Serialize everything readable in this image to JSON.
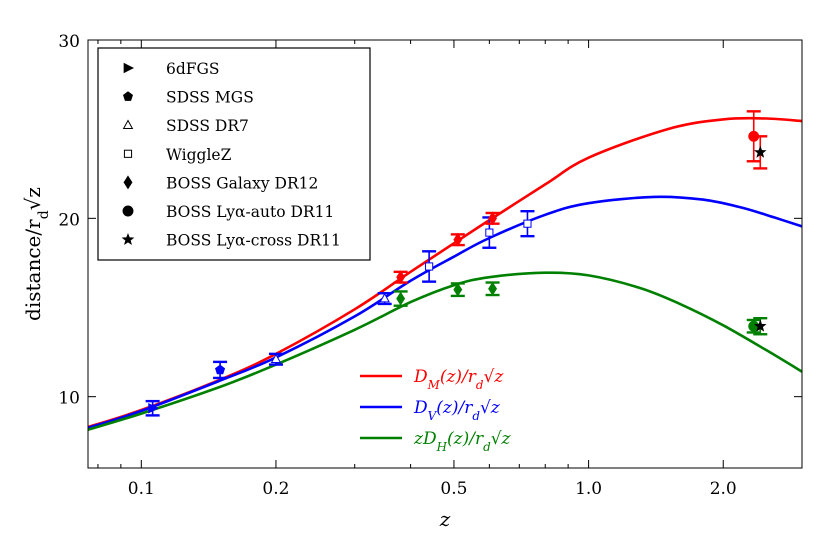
{
  "chart_data": {
    "type": "scatter",
    "title": "",
    "xlabel": "z",
    "ylabel": "distance/r_d√z",
    "xscale": "log",
    "xlim": [
      0.076,
      3.0
    ],
    "ylim": [
      6.0,
      30.0
    ],
    "x_ticks": [
      {
        "value": 0.1,
        "label": "0.1"
      },
      {
        "value": 0.2,
        "label": "0.2"
      },
      {
        "value": 0.5,
        "label": "0.5"
      },
      {
        "value": 1.0,
        "label": "1.0"
      },
      {
        "value": 2.0,
        "label": "2.0"
      }
    ],
    "y_ticks": [
      {
        "value": 10,
        "label": "10"
      },
      {
        "value": 20,
        "label": "20"
      },
      {
        "value": 30,
        "label": "30"
      }
    ],
    "curves": [
      {
        "name": "D_M(z)/r_d√z",
        "color": "#ff0000",
        "points": [
          [
            0.076,
            8.3
          ],
          [
            0.1,
            9.25
          ],
          [
            0.15,
            10.95
          ],
          [
            0.2,
            12.4
          ],
          [
            0.3,
            14.9
          ],
          [
            0.4,
            17.0
          ],
          [
            0.5,
            18.6
          ],
          [
            0.6,
            19.9
          ],
          [
            0.8,
            21.9
          ],
          [
            1.0,
            23.4
          ],
          [
            1.5,
            25.0
          ],
          [
            2.0,
            25.55
          ],
          [
            2.5,
            25.6
          ],
          [
            3.0,
            25.45
          ]
        ]
      },
      {
        "name": "D_V(z)/r_d√z",
        "color": "#0000ff",
        "points": [
          [
            0.076,
            8.25
          ],
          [
            0.1,
            9.2
          ],
          [
            0.15,
            10.9
          ],
          [
            0.2,
            12.2
          ],
          [
            0.3,
            14.5
          ],
          [
            0.4,
            16.5
          ],
          [
            0.5,
            17.85
          ],
          [
            0.6,
            18.9
          ],
          [
            0.8,
            20.2
          ],
          [
            1.0,
            20.85
          ],
          [
            1.4,
            21.2
          ],
          [
            1.8,
            21.05
          ],
          [
            2.2,
            20.6
          ],
          [
            2.6,
            20.05
          ],
          [
            3.0,
            19.55
          ]
        ]
      },
      {
        "name": "zD_H(z)/r_d√z",
        "color": "#008000",
        "points": [
          [
            0.076,
            8.15
          ],
          [
            0.1,
            9.05
          ],
          [
            0.15,
            10.55
          ],
          [
            0.2,
            11.8
          ],
          [
            0.3,
            13.75
          ],
          [
            0.4,
            15.3
          ],
          [
            0.5,
            16.25
          ],
          [
            0.6,
            16.7
          ],
          [
            0.8,
            16.95
          ],
          [
            1.0,
            16.8
          ],
          [
            1.3,
            16.1
          ],
          [
            1.6,
            15.2
          ],
          [
            2.0,
            14.0
          ],
          [
            2.5,
            12.6
          ],
          [
            3.0,
            11.4
          ]
        ]
      }
    ],
    "series": [
      {
        "name": "6dFGS",
        "marker": "triangle-right",
        "points": [
          {
            "x": 0.106,
            "y": 9.35,
            "err": 0.4,
            "color": "#0000ff"
          }
        ]
      },
      {
        "name": "SDSS MGS",
        "marker": "pentagon",
        "points": [
          {
            "x": 0.15,
            "y": 11.5,
            "err": 0.45,
            "color": "#0000ff"
          }
        ]
      },
      {
        "name": "SDSS DR7",
        "marker": "triangle-open",
        "points": [
          {
            "x": 0.2,
            "y": 12.1,
            "err": 0.3,
            "color": "#0000ff"
          },
          {
            "x": 0.35,
            "y": 15.5,
            "err": 0.3,
            "color": "#0000ff"
          }
        ]
      },
      {
        "name": "WiggleZ",
        "marker": "square-open",
        "points": [
          {
            "x": 0.44,
            "y": 17.3,
            "err": 0.85,
            "color": "#0000ff"
          },
          {
            "x": 0.6,
            "y": 19.2,
            "err": 0.85,
            "color": "#0000ff"
          },
          {
            "x": 0.73,
            "y": 19.7,
            "err": 0.7,
            "color": "#0000ff"
          }
        ]
      },
      {
        "name": "BOSS Galaxy DR12",
        "marker": "diamond",
        "points": [
          {
            "x": 0.38,
            "y": 16.7,
            "err": 0.3,
            "color": "#ff0000"
          },
          {
            "x": 0.51,
            "y": 18.8,
            "err": 0.3,
            "color": "#ff0000"
          },
          {
            "x": 0.61,
            "y": 20.0,
            "err": 0.3,
            "color": "#ff0000"
          },
          {
            "x": 0.38,
            "y": 15.5,
            "err": 0.4,
            "color": "#008000"
          },
          {
            "x": 0.51,
            "y": 16.0,
            "err": 0.35,
            "color": "#008000"
          },
          {
            "x": 0.61,
            "y": 16.05,
            "err": 0.35,
            "color": "#008000"
          }
        ]
      },
      {
        "name": "BOSS Lyα-auto DR11",
        "marker": "circle",
        "points": [
          {
            "x": 2.34,
            "y": 24.6,
            "err": 1.4,
            "color": "#ff0000"
          },
          {
            "x": 2.34,
            "y": 13.95,
            "err": 0.35,
            "color": "#008000"
          }
        ]
      },
      {
        "name": "BOSS Lyα-cross DR11",
        "marker": "star",
        "points": [
          {
            "x": 2.42,
            "y": 23.7,
            "err": 0.9,
            "color": "#ff0000"
          },
          {
            "x": 2.42,
            "y": 13.95,
            "err": 0.45,
            "color": "#008000"
          }
        ]
      }
    ],
    "curve_labels": [
      {
        "text": "D_M(z)/r_d√z",
        "color": "#ff0000"
      },
      {
        "text": "D_V(z)/r_d√z",
        "color": "#0000ff"
      },
      {
        "text": "zD_H(z)/r_d√z",
        "color": "#008000"
      }
    ],
    "legend_position": "top-left"
  }
}
